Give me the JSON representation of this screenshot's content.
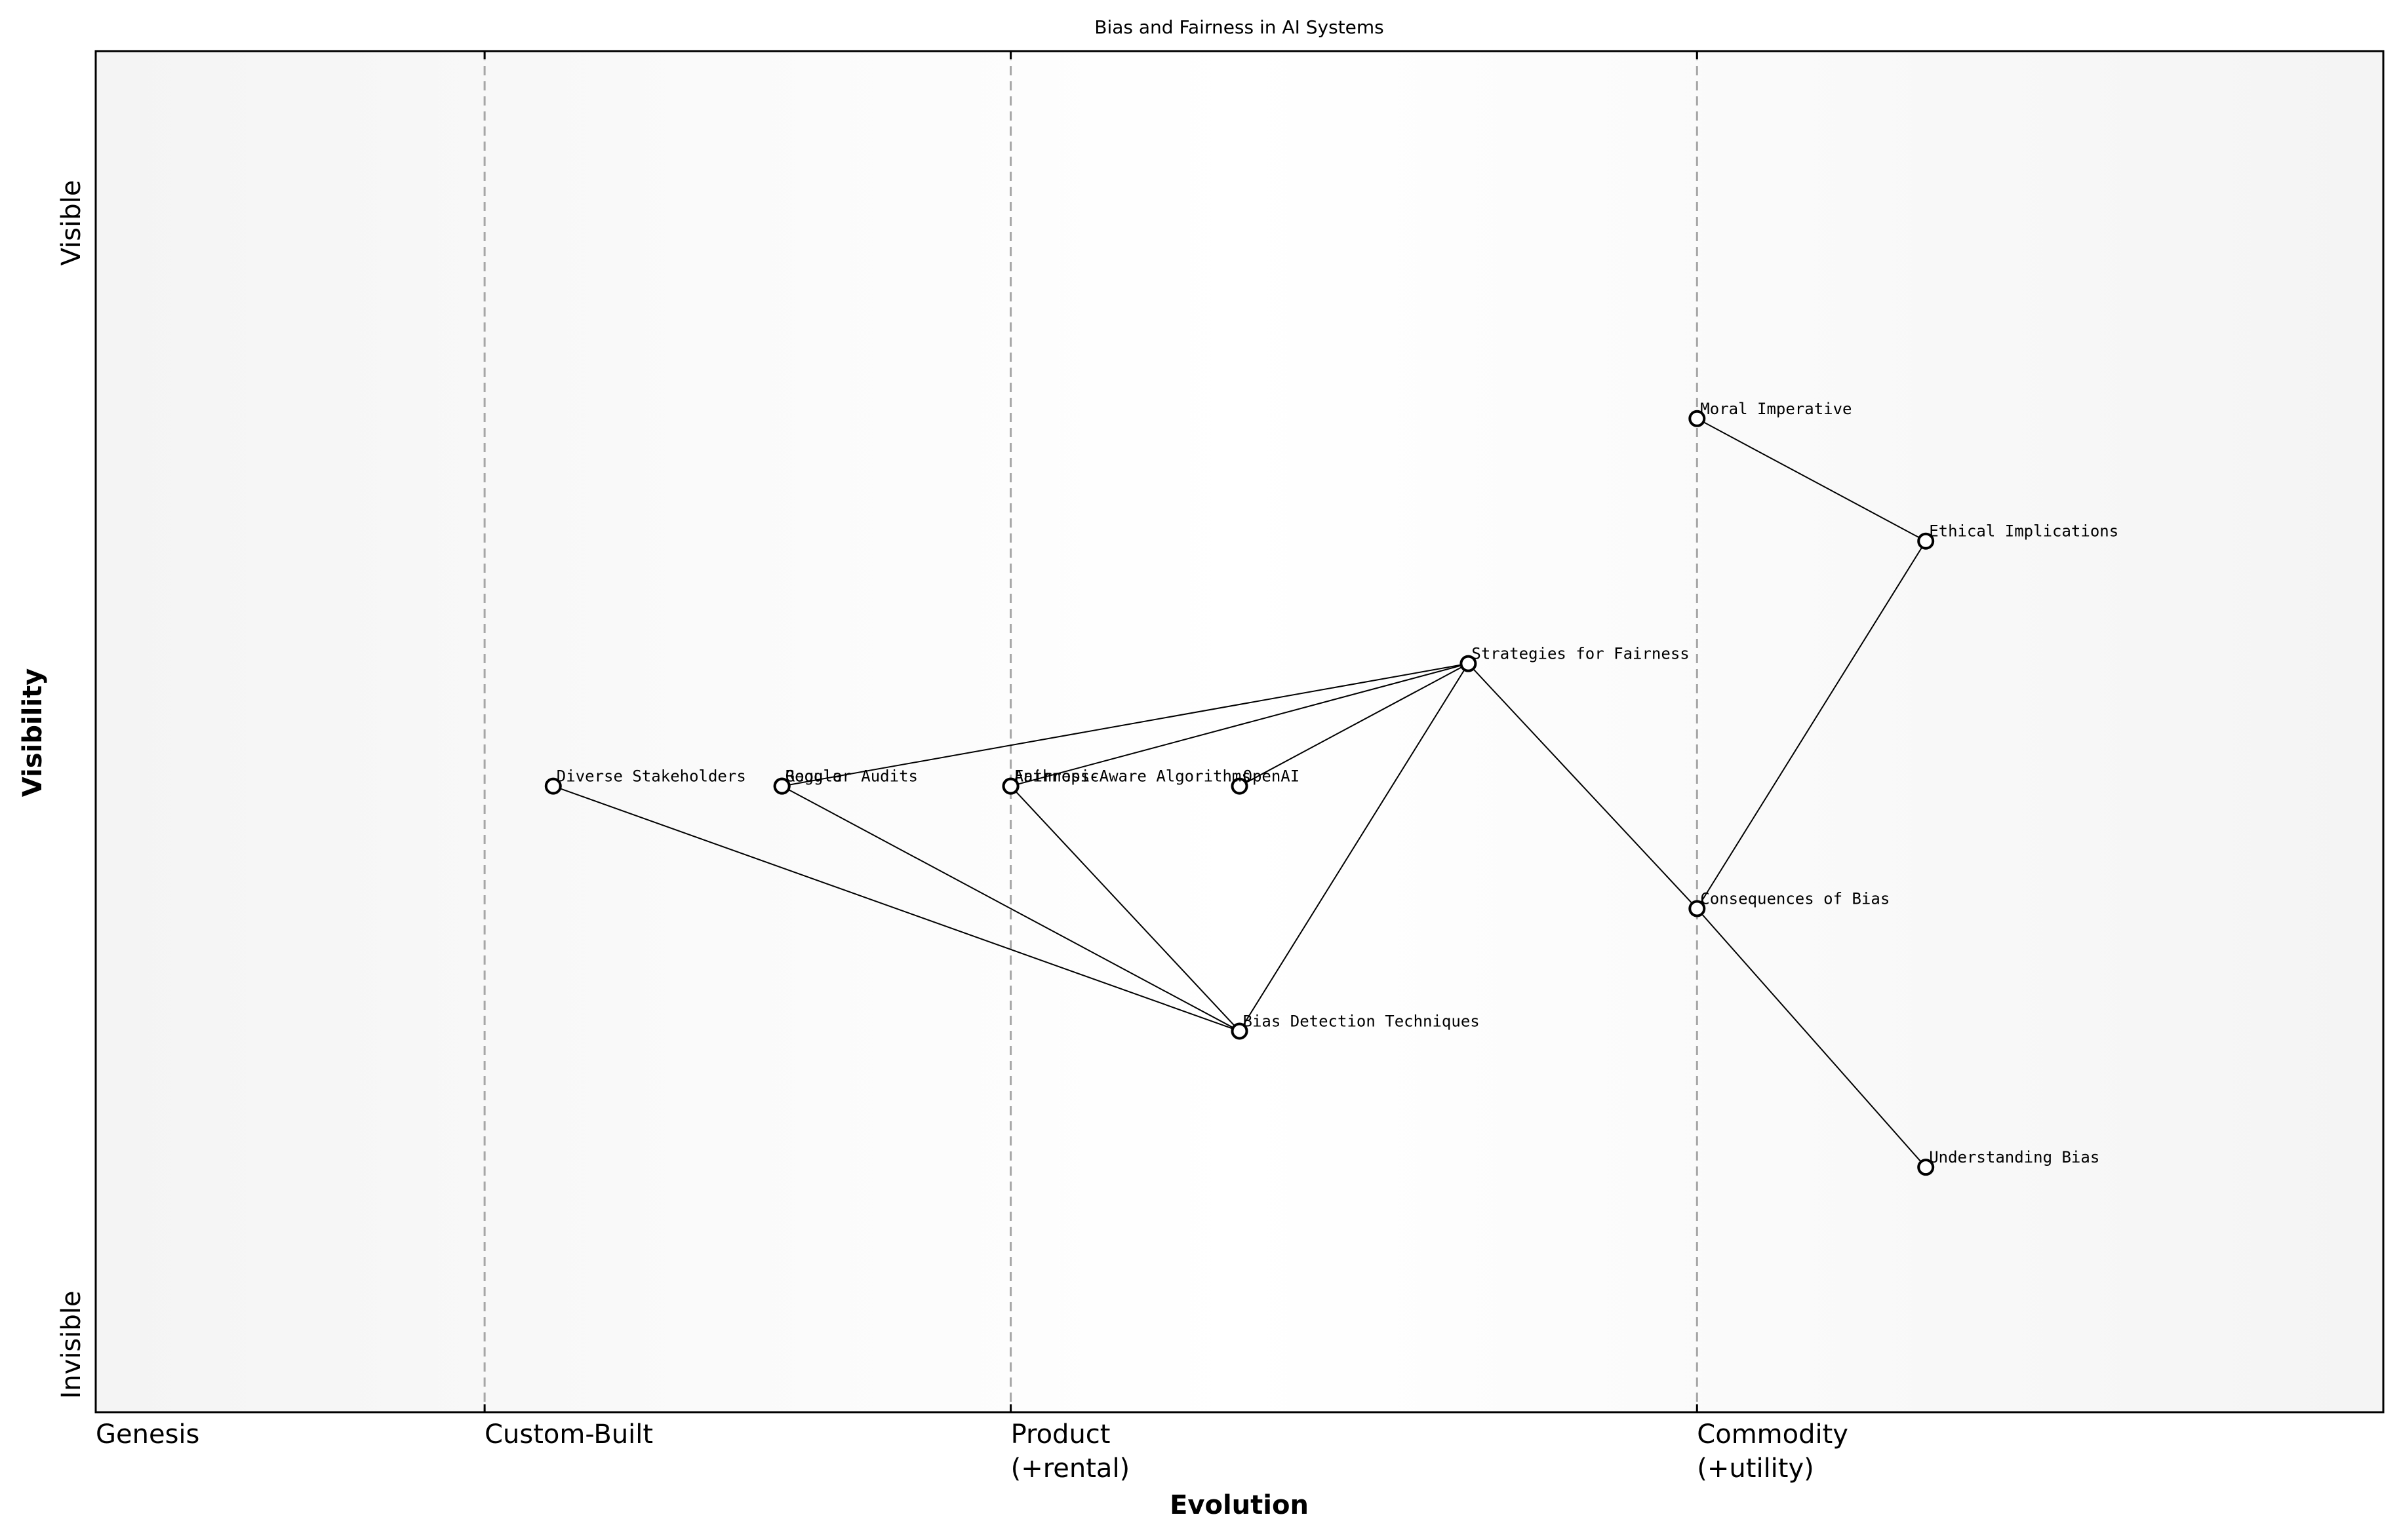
{
  "title": "Bias and Fairness in AI Systems",
  "x_axis_title": "Evolution",
  "y_axis_title": "Visibility",
  "y_axis_ends": {
    "top": "Visible",
    "bottom": "Invisible"
  },
  "stages": [
    {
      "lines": [
        "Genesis"
      ],
      "at": 0.0
    },
    {
      "lines": [
        "Custom-Built"
      ],
      "at": 0.17
    },
    {
      "lines": [
        "Product",
        "(+rental)"
      ],
      "at": 0.4
    },
    {
      "lines": [
        "Commodity",
        "(+utility)"
      ],
      "at": 0.7
    }
  ],
  "nodes": [
    {
      "id": "moral",
      "label": "Moral Imperative",
      "evolution": 0.7,
      "visibility": 0.73
    },
    {
      "id": "ethical",
      "label": "Ethical Implications",
      "evolution": 0.8,
      "visibility": 0.64
    },
    {
      "id": "strategies",
      "label": "Strategies for Fairness",
      "evolution": 0.6,
      "visibility": 0.55
    },
    {
      "id": "diverse",
      "label": "Diverse Stakeholders",
      "evolution": 0.2,
      "visibility": 0.46
    },
    {
      "id": "google",
      "label": "Google",
      "evolution": 0.3,
      "visibility": 0.46
    },
    {
      "id": "regular",
      "label": "Regular Audits",
      "evolution": 0.3,
      "visibility": 0.46
    },
    {
      "id": "anthropic",
      "label": "Anthropic",
      "evolution": 0.4,
      "visibility": 0.46
    },
    {
      "id": "fairness",
      "label": "Fairness-Aware Algorithms",
      "evolution": 0.4,
      "visibility": 0.46
    },
    {
      "id": "openai",
      "label": "OpenAI",
      "evolution": 0.5,
      "visibility": 0.46
    },
    {
      "id": "consequences",
      "label": "Consequences of Bias",
      "evolution": 0.7,
      "visibility": 0.37
    },
    {
      "id": "bias_detect",
      "label": "Bias Detection Techniques",
      "evolution": 0.5,
      "visibility": 0.28
    },
    {
      "id": "understanding",
      "label": "Understanding Bias",
      "evolution": 0.8,
      "visibility": 0.18
    }
  ],
  "links": [
    [
      "moral",
      "ethical"
    ],
    [
      "ethical",
      "consequences"
    ],
    [
      "consequences",
      "understanding"
    ],
    [
      "consequences",
      "strategies"
    ],
    [
      "strategies",
      "regular"
    ],
    [
      "strategies",
      "fairness"
    ],
    [
      "strategies",
      "openai"
    ],
    [
      "strategies",
      "bias_detect"
    ],
    [
      "bias_detect",
      "diverse"
    ],
    [
      "bias_detect",
      "google"
    ],
    [
      "bias_detect",
      "anthropic"
    ]
  ]
}
